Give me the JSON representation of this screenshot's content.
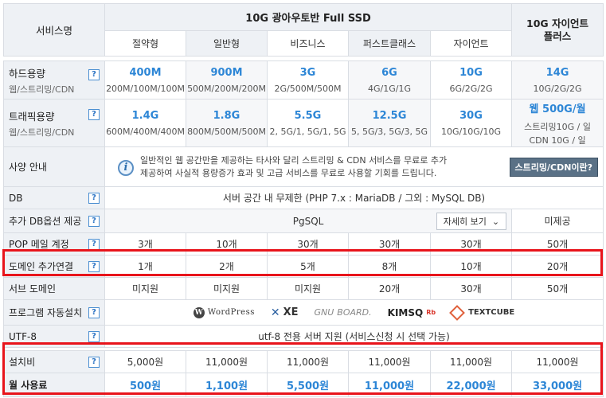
{
  "header": {
    "service_name": "서비스명",
    "group_title": "10G 광아우토반 Full SSD",
    "plans": [
      "절약형",
      "일반형",
      "비즈니스",
      "퍼스트클래스",
      "자이언트"
    ],
    "giant_plus": "10G 자이언트 플러스"
  },
  "rows": {
    "disk": {
      "label": "하드용량",
      "sublabel": "웹/스트리밍/CDN",
      "values": [
        {
          "main": "400M",
          "sub": "200M/100M/100M"
        },
        {
          "main": "900M",
          "sub": "500M/200M/200M"
        },
        {
          "main": "3G",
          "sub": "2G/500M/500M"
        },
        {
          "main": "6G",
          "sub": "4G/1G/1G"
        },
        {
          "main": "10G",
          "sub": "6G/2G/2G"
        },
        {
          "main": "14G",
          "sub": "10G/2G/2G"
        }
      ]
    },
    "traffic": {
      "label": "트래픽용량",
      "sublabel": "웹/스트리밍/CDN",
      "values": [
        {
          "main": "1.4G",
          "sub": "600M/400M/400M"
        },
        {
          "main": "1.8G",
          "sub": "800M/500M/500M"
        },
        {
          "main": "5.5G",
          "sub": "2, 5G/1, 5G/1, 5G"
        },
        {
          "main": "12.5G",
          "sub": "5, 5G/3, 5G/3, 5G"
        },
        {
          "main": "30G",
          "sub": "10G/10G/10G"
        },
        {
          "main": "웹 500G/월",
          "sub": "스트리밍10G / 일",
          "sub2": "CDN 10G / 일"
        }
      ]
    },
    "spec": {
      "label": "사양 안내",
      "text1": "일반적인 웹 공간만을 제공하는 타사와 달리 스트리밍 & CDN 서비스를 무료로 추가",
      "text2": "제공하여 사실적 용량증가 효과 및 고급 서비스를 무료로 사용할 기회를 드립니다.",
      "button": "스트리밍/CDN이란?"
    },
    "db": {
      "label": "DB",
      "value": "서버 공간 내 무제한 (PHP 7.x : MariaDB / 그외 : MySQL DB)"
    },
    "db_option": {
      "label": "추가 DB옵션 제공",
      "value": "PgSQL",
      "detail": "자세히 보기",
      "giant_plus": "미제공"
    },
    "pop": {
      "label": "POP 메일 계정",
      "values": [
        "3개",
        "10개",
        "30개",
        "30개",
        "30개",
        "50개"
      ]
    },
    "domain_add": {
      "label": "도메인 추가연결",
      "values": [
        "1개",
        "2개",
        "5개",
        "8개",
        "10개",
        "20개"
      ]
    },
    "sub_domain": {
      "label": "서브 도메인",
      "values": [
        "미지원",
        "미지원",
        "미지원",
        "20개",
        "30개",
        "50개"
      ]
    },
    "auto_install": {
      "label": "프로그램 자동설치",
      "logos": [
        "WordPress",
        "XE",
        "GNUBOARD.",
        "KIMSQ",
        "TEXTCUBE"
      ]
    },
    "utf8": {
      "label": "UTF-8",
      "value": "utf-8 전용 서버 지원 (서비스신청 시 선택 가능)"
    },
    "setup_fee": {
      "label": "설치비",
      "values": [
        "5,000원",
        "11,000원",
        "11,000원",
        "11,000원",
        "11,000원",
        "11,000원"
      ]
    },
    "monthly_fee": {
      "label": "월 사용료",
      "values": [
        "500원",
        "1,100원",
        "5,500원",
        "11,000원",
        "22,000원",
        "33,000원"
      ]
    }
  },
  "help_symbol": "?",
  "colors": {
    "accent": "#2d86d6",
    "highlight_border": "#e8141b",
    "header_bg": "#eef1f5"
  }
}
